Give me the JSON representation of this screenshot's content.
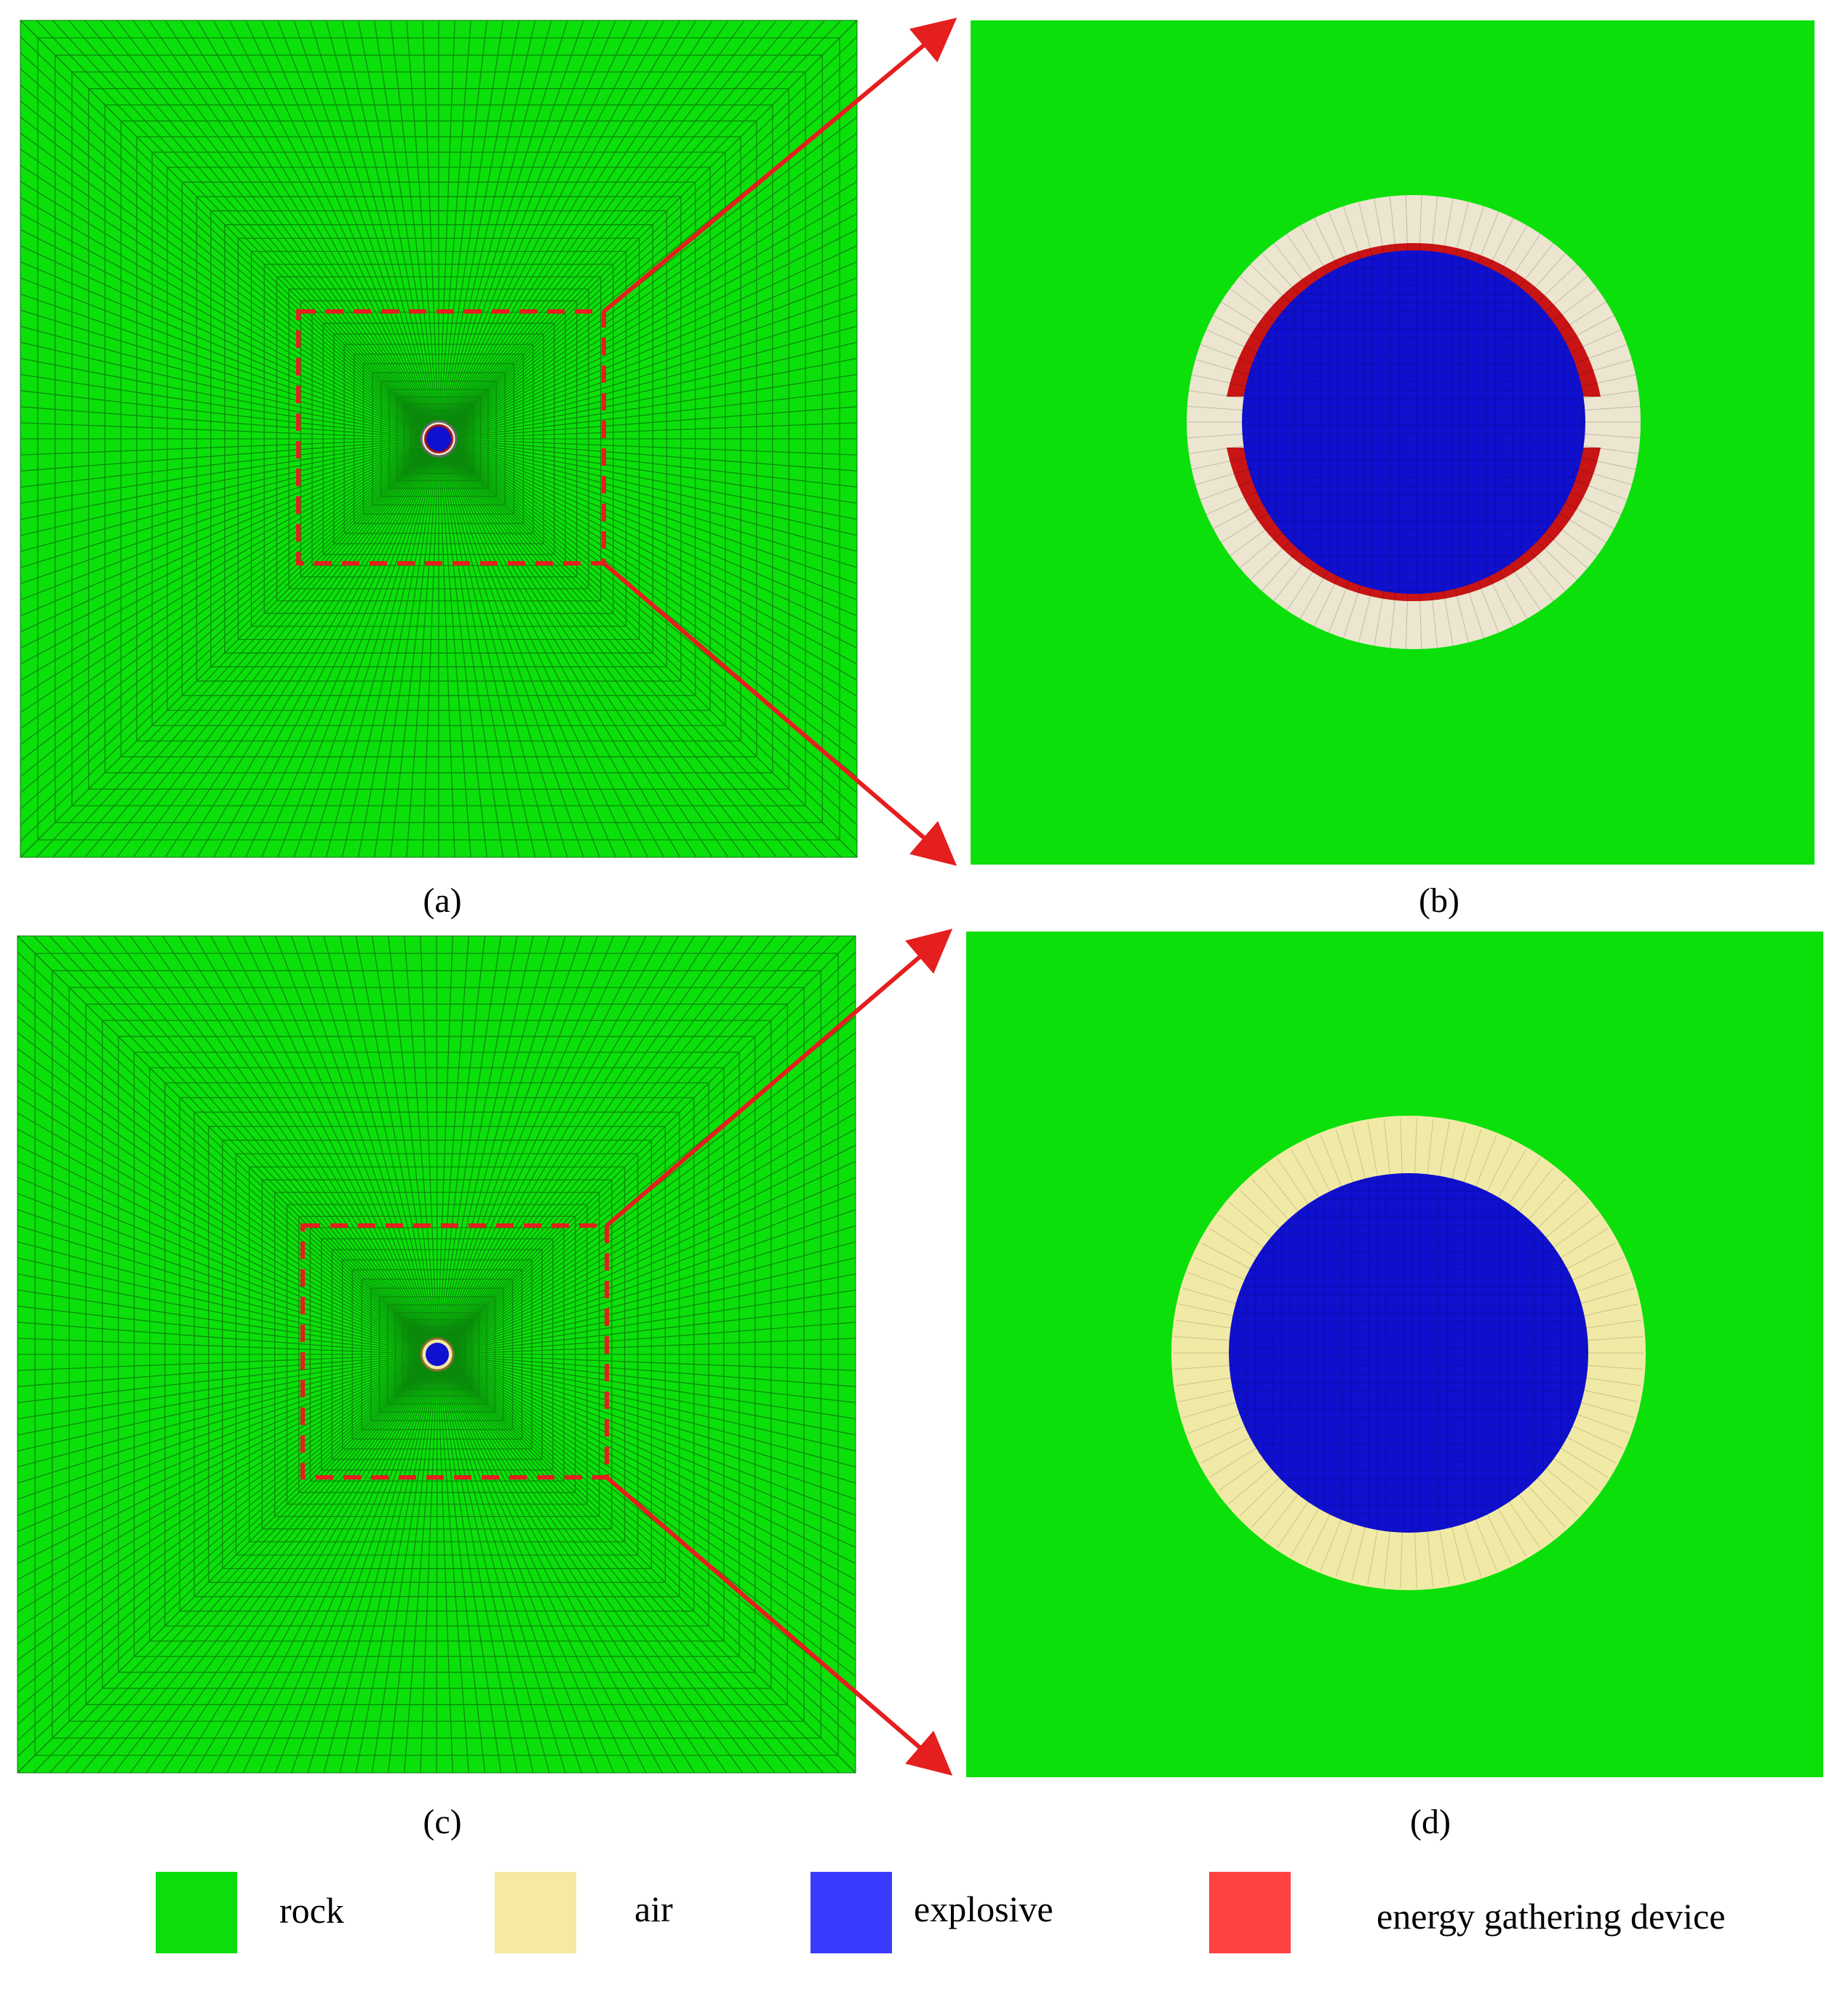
{
  "panels": [
    {
      "id": "a",
      "caption": "(a)",
      "view": "full-mesh",
      "charge": "shaped"
    },
    {
      "id": "b",
      "caption": "(b)",
      "view": "zoom",
      "charge": "shaped"
    },
    {
      "id": "c",
      "caption": "(c)",
      "view": "full-mesh",
      "charge": "conventional"
    },
    {
      "id": "d",
      "caption": "(d)",
      "view": "zoom",
      "charge": "conventional"
    }
  ],
  "legend": [
    {
      "key": "rock",
      "label": "rock",
      "color": "#0bde0b"
    },
    {
      "key": "air",
      "label": "air",
      "color": "#f8e9a1"
    },
    {
      "key": "explosive",
      "label": "explosive",
      "color": "#3a3afc"
    },
    {
      "key": "device",
      "label": "energy gathering device",
      "color": "#fe4141"
    }
  ],
  "colors": {
    "rock": "#0be00b",
    "mesh_line": "#0a6d0a",
    "explosive": "#1010d0",
    "air_b": "#ece5cf",
    "air_d": "#f1eaa6",
    "device": "#c81414",
    "callout": "#e51e1e"
  }
}
